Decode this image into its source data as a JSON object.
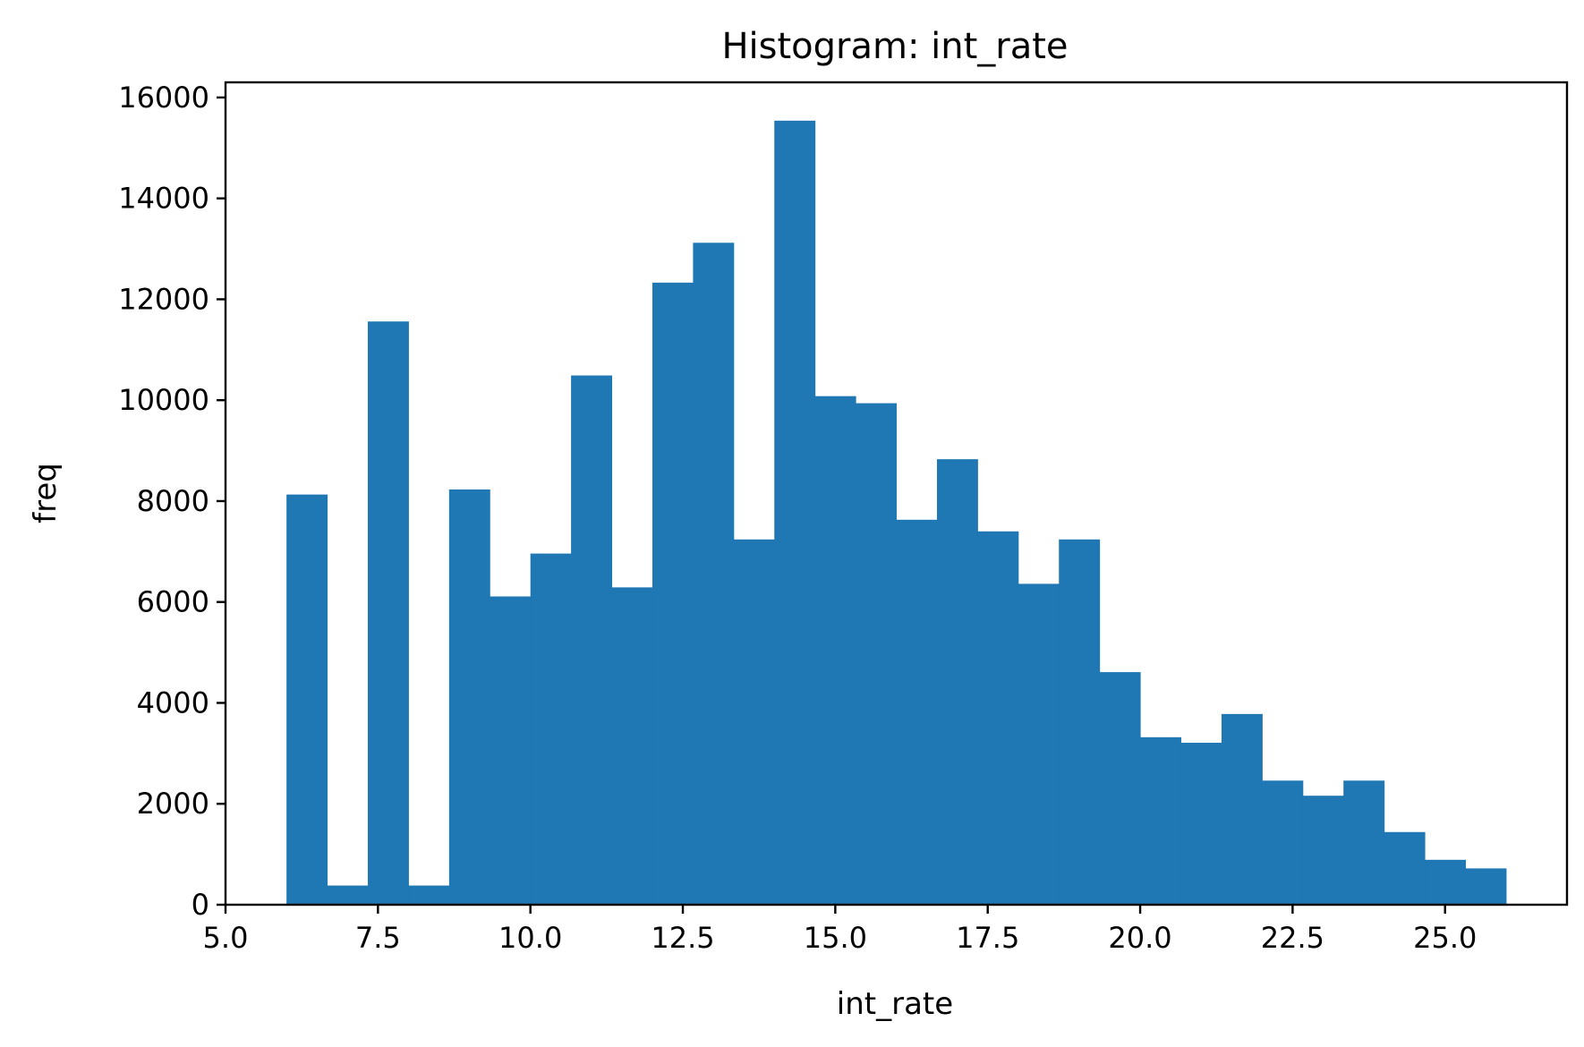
{
  "chart_data": {
    "type": "bar",
    "title": "Histogram: int_rate",
    "xlabel": "int_rate",
    "ylabel": "freq",
    "xlim": [
      5.0,
      27.0
    ],
    "ylim": [
      0,
      16300
    ],
    "x_ticks": [
      5.0,
      7.5,
      10.0,
      12.5,
      15.0,
      17.5,
      20.0,
      22.5,
      25.0
    ],
    "x_tick_labels": [
      "5.0",
      "7.5",
      "10.0",
      "12.5",
      "15.0",
      "17.5",
      "20.0",
      "22.5",
      "25.0"
    ],
    "y_ticks": [
      0,
      2000,
      4000,
      6000,
      8000,
      10000,
      12000,
      14000,
      16000
    ],
    "y_tick_labels": [
      "0",
      "2000",
      "4000",
      "6000",
      "8000",
      "10000",
      "12000",
      "14000",
      "16000"
    ],
    "bin_start": 6.0,
    "bin_width": 0.6667,
    "values": [
      8130,
      380,
      11560,
      380,
      8230,
      6110,
      6960,
      10490,
      6290,
      12330,
      13120,
      7240,
      15540,
      10080,
      9940,
      7630,
      8830,
      7400,
      6360,
      7240,
      4610,
      3320,
      3210,
      3780,
      2460,
      2160,
      2460,
      1440,
      890,
      720
    ],
    "grid": false,
    "bar_color": "#1f77b4"
  }
}
